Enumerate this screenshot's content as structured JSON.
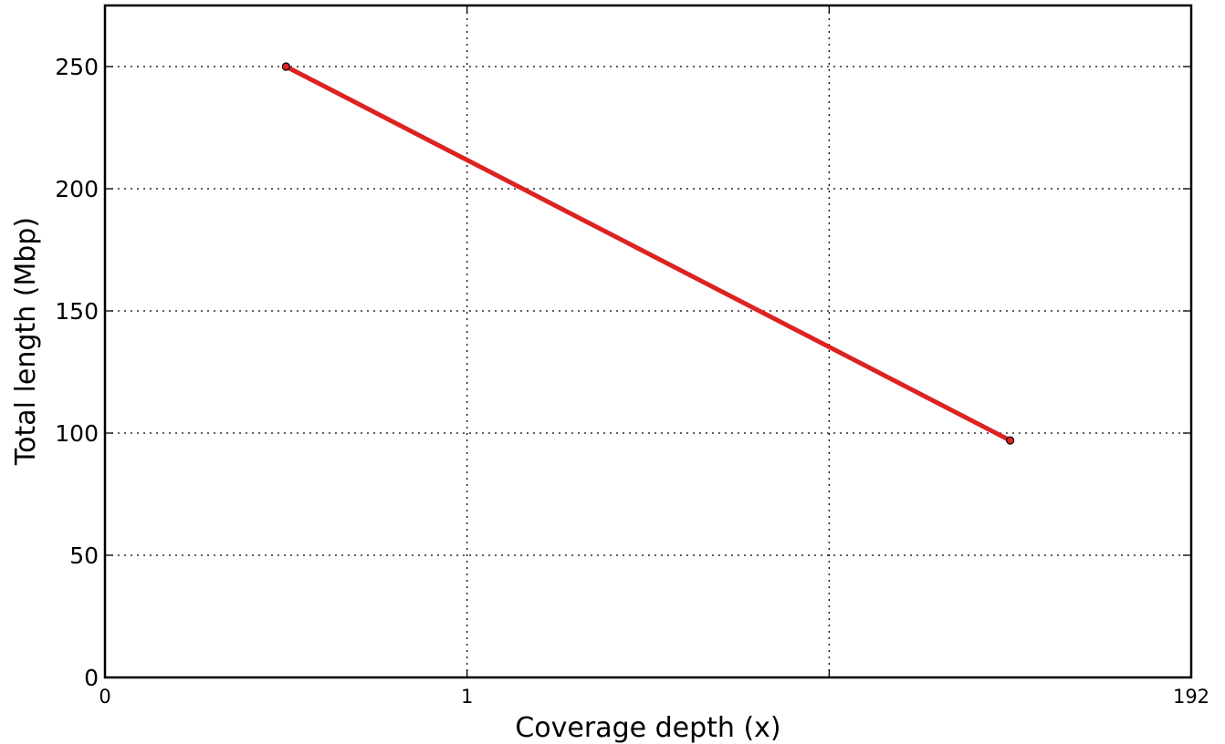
{
  "chart_data": {
    "type": "line",
    "xlabel": "Coverage depth (x)",
    "ylabel": "Total length (Mbp)",
    "x_tick_labels": [
      "0",
      "1",
      "",
      "192"
    ],
    "y_ticks": [
      0,
      50,
      100,
      150,
      200,
      250
    ],
    "y_tick_labels": [
      "0",
      "50",
      "100",
      "150",
      "200",
      "250"
    ],
    "ylim": [
      0,
      275
    ],
    "grid": true,
    "series": [
      {
        "color": "#dd2222",
        "points": [
          {
            "x_tick_position": 0.5,
            "y": 250
          },
          {
            "x_tick_position": 2.5,
            "y": 97
          }
        ]
      }
    ]
  }
}
